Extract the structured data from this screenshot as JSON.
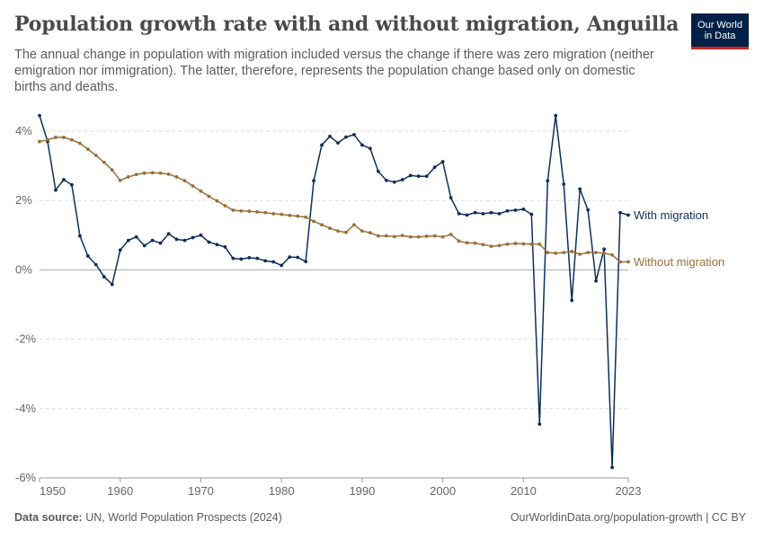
{
  "header": {
    "title": "Population growth rate with and without migration, Anguilla",
    "subtitle": "The annual change in population with migration included versus the change if there was zero migration (neither emigration nor immigration). The latter, therefore, represents the population change based only on domestic births and deaths."
  },
  "logo": {
    "line1": "Our World",
    "line2": "in Data",
    "bg_color": "#002147",
    "accent_color": "#ce261e"
  },
  "footer": {
    "source_label": "Data source:",
    "source_text": "UN, World Population Prospects (2024)",
    "url": "OurWorldinData.org/population-growth | CC BY"
  },
  "chart_data": {
    "type": "line",
    "title": "Population growth rate with and without migration, Anguilla",
    "xlabel": "",
    "ylabel": "",
    "xlim": [
      1950,
      2023
    ],
    "ylim": [
      -6,
      4.5
    ],
    "y_ticks": [
      -6,
      -4,
      -2,
      0,
      2,
      4
    ],
    "y_tick_labels": [
      "-6%",
      "-4%",
      "-2%",
      "0%",
      "2%",
      "4%"
    ],
    "x_ticks": [
      1950,
      1960,
      1970,
      1980,
      1990,
      2000,
      2010,
      2023
    ],
    "x_tick_labels": [
      "1950",
      "1960",
      "1970",
      "1980",
      "1990",
      "2000",
      "2010",
      "2023"
    ],
    "grid": "horizontal dashed",
    "legend": "inline labels at right end of lines",
    "x": [
      1950,
      1951,
      1952,
      1953,
      1954,
      1955,
      1956,
      1957,
      1958,
      1959,
      1960,
      1961,
      1962,
      1963,
      1964,
      1965,
      1966,
      1967,
      1968,
      1969,
      1970,
      1971,
      1972,
      1973,
      1974,
      1975,
      1976,
      1977,
      1978,
      1979,
      1980,
      1981,
      1982,
      1983,
      1984,
      1985,
      1986,
      1987,
      1988,
      1989,
      1990,
      1991,
      1992,
      1993,
      1994,
      1995,
      1996,
      1997,
      1998,
      1999,
      2000,
      2001,
      2002,
      2003,
      2004,
      2005,
      2006,
      2007,
      2008,
      2009,
      2010,
      2011,
      2012,
      2013,
      2014,
      2015,
      2016,
      2017,
      2018,
      2019,
      2020,
      2021,
      2022,
      2023
    ],
    "series": [
      {
        "name": "With migration",
        "color": "#0e2f5a",
        "values": [
          4.45,
          3.7,
          2.3,
          2.6,
          2.45,
          0.98,
          0.4,
          0.15,
          -0.2,
          -0.42,
          0.57,
          0.85,
          0.95,
          0.7,
          0.85,
          0.77,
          1.04,
          0.88,
          0.85,
          0.93,
          1.0,
          0.8,
          0.73,
          0.66,
          0.33,
          0.31,
          0.35,
          0.33,
          0.26,
          0.23,
          0.13,
          0.37,
          0.36,
          0.24,
          2.57,
          3.6,
          3.85,
          3.66,
          3.83,
          3.9,
          3.6,
          3.5,
          2.84,
          2.58,
          2.53,
          2.6,
          2.72,
          2.7,
          2.7,
          2.96,
          3.12,
          2.08,
          1.62,
          1.58,
          1.65,
          1.62,
          1.65,
          1.62,
          1.7,
          1.72,
          1.75,
          1.6,
          -4.45,
          2.57,
          4.45,
          2.47,
          -0.88,
          2.33,
          1.73,
          -0.32,
          0.6,
          -5.7,
          1.65,
          1.58
        ]
      },
      {
        "name": "Without migration",
        "color": "#9a6f3a",
        "values": [
          3.7,
          3.75,
          3.82,
          3.82,
          3.75,
          3.65,
          3.48,
          3.3,
          3.1,
          2.88,
          2.58,
          2.68,
          2.75,
          2.79,
          2.8,
          2.79,
          2.76,
          2.68,
          2.57,
          2.42,
          2.27,
          2.12,
          1.99,
          1.85,
          1.72,
          1.7,
          1.69,
          1.67,
          1.65,
          1.62,
          1.6,
          1.57,
          1.55,
          1.52,
          1.4,
          1.3,
          1.2,
          1.12,
          1.08,
          1.3,
          1.12,
          1.07,
          0.98,
          0.98,
          0.96,
          0.99,
          0.95,
          0.95,
          0.97,
          0.98,
          0.95,
          1.02,
          0.83,
          0.78,
          0.77,
          0.73,
          0.68,
          0.7,
          0.74,
          0.76,
          0.75,
          0.74,
          0.74,
          0.5,
          0.48,
          0.5,
          0.53,
          0.45,
          0.5,
          0.5,
          0.48,
          0.43,
          0.23,
          0.23
        ]
      }
    ]
  }
}
